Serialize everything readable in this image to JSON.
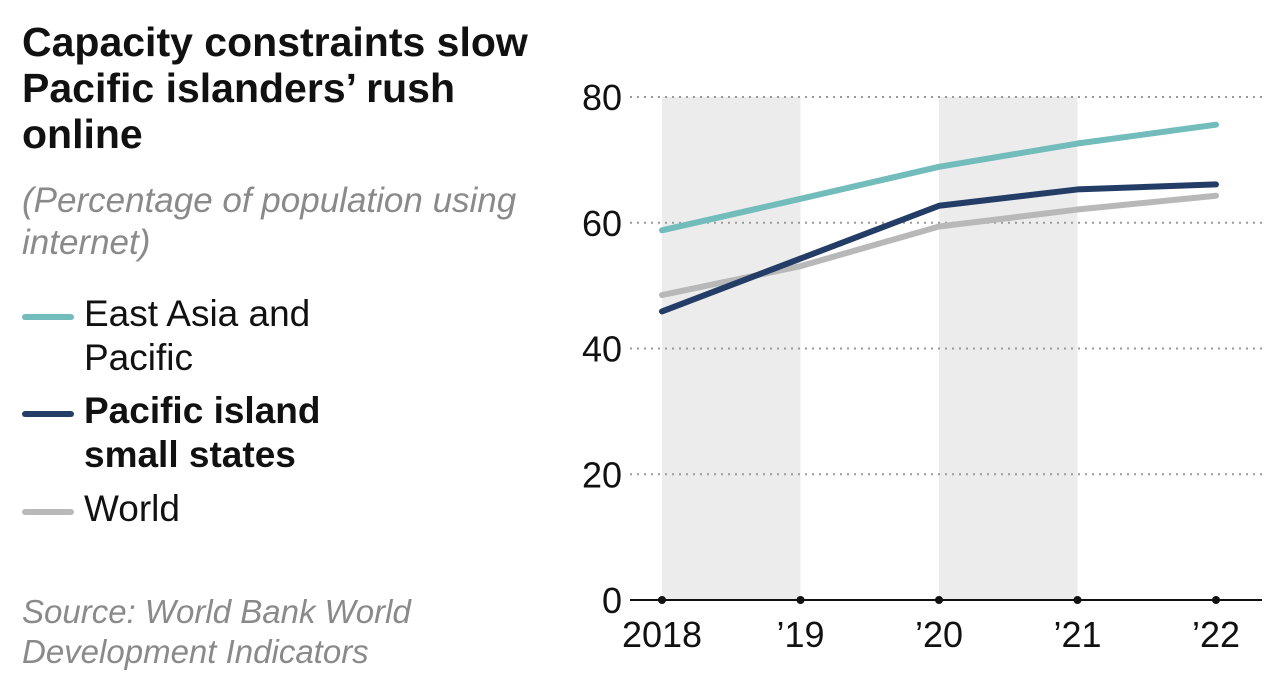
{
  "title": "Capacity constraints slow Pacific islanders’ rush online",
  "subtitle": "(Percentage of population using internet)",
  "legend": [
    {
      "label": "East Asia and Pacific",
      "color": "#72bcbc",
      "bold": false
    },
    {
      "label": "Pacific island small states",
      "color": "#233d66",
      "bold": true
    },
    {
      "label": "World",
      "color": "#b8b8b8",
      "bold": false
    }
  ],
  "source": "Source: World Bank World Development Indicators",
  "chart_data": {
    "type": "line",
    "title": "Capacity constraints slow Pacific islanders’ rush online",
    "ylabel": "Percentage of population using internet",
    "xlabel": "",
    "categories": [
      "2018",
      "’19",
      "’20",
      "’21",
      "’22"
    ],
    "ylim": [
      0,
      80
    ],
    "yticks": [
      0,
      20,
      40,
      60,
      80
    ],
    "grid": true,
    "shaded_categories": [
      "2018",
      "’20"
    ],
    "series": [
      {
        "name": "East Asia and Pacific",
        "color": "#72bcbc",
        "values": [
          58.8,
          63.8,
          68.9,
          72.6,
          75.6
        ]
      },
      {
        "name": "Pacific island small states",
        "color": "#233d66",
        "values": [
          45.9,
          54.3,
          62.7,
          65.3,
          66.1
        ]
      },
      {
        "name": "World",
        "color": "#b8b8b8",
        "values": [
          48.5,
          53.1,
          59.4,
          62.1,
          64.3
        ]
      }
    ]
  }
}
